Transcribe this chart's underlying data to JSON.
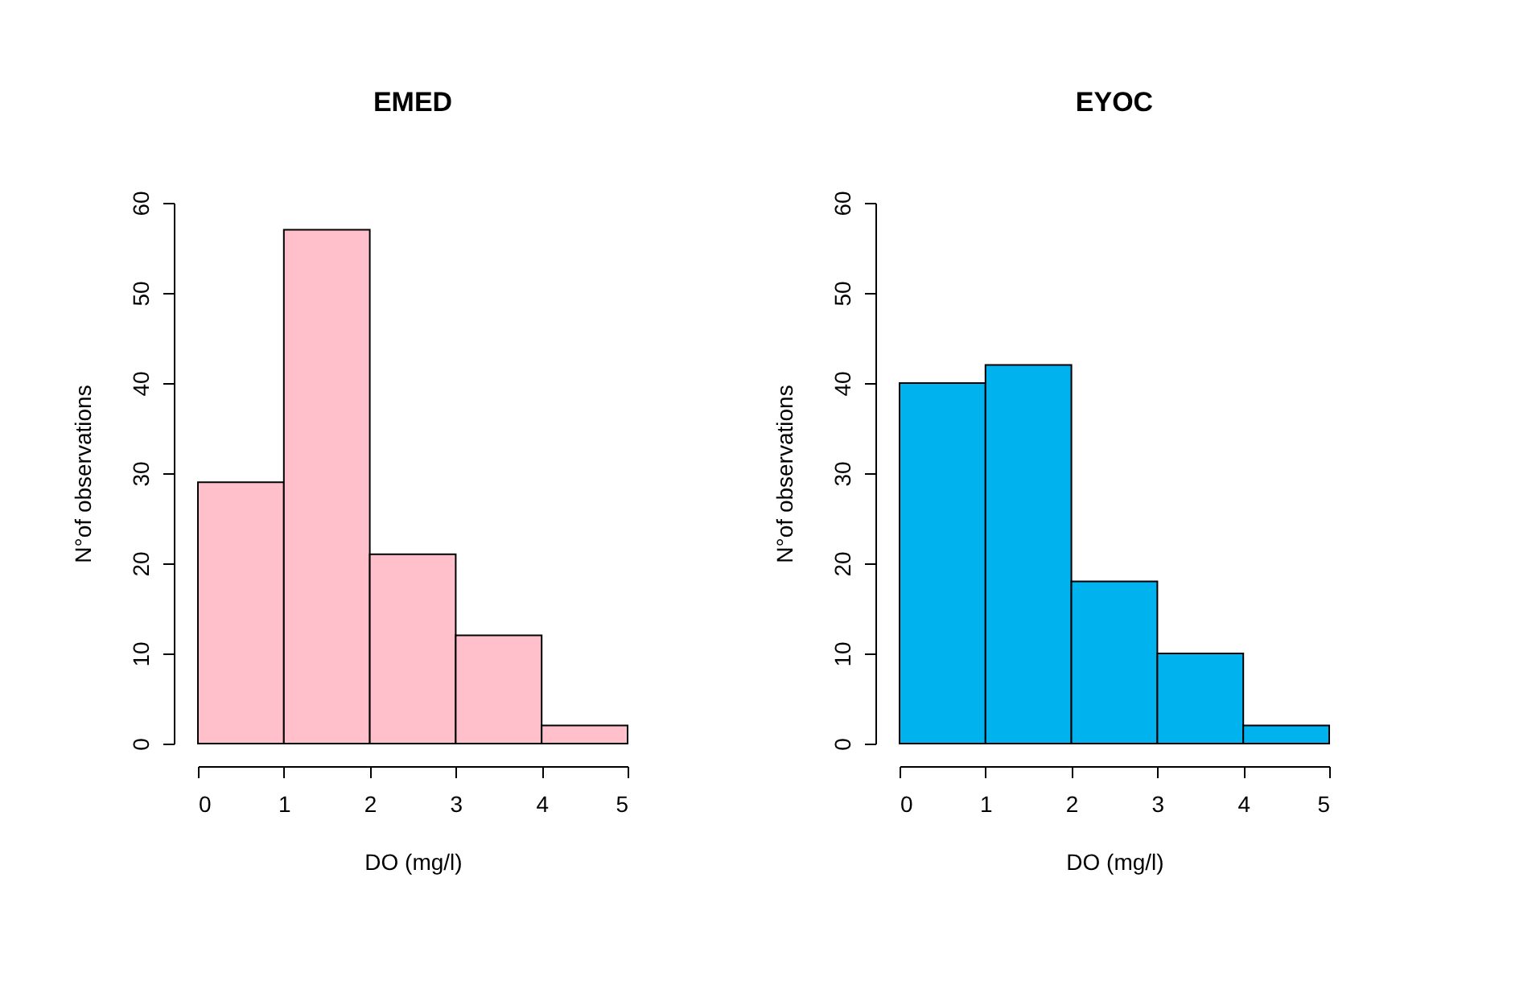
{
  "chart_data": [
    {
      "type": "histogram",
      "title": "EMED",
      "xlabel": "DO (mg/l)",
      "ylabel": "N°of observations",
      "bins": [
        0,
        1,
        2,
        3,
        4,
        5
      ],
      "values": [
        29,
        57,
        21,
        12,
        2
      ],
      "color": "#ffc0cb",
      "xlim": [
        0,
        5
      ],
      "xticks": [
        0,
        1,
        2,
        3,
        4,
        5
      ],
      "ylim": [
        0,
        60
      ],
      "yticks": [
        0,
        10,
        20,
        30,
        40,
        50,
        60
      ]
    },
    {
      "type": "histogram",
      "title": "EYOC",
      "xlabel": "DO (mg/l)",
      "ylabel": "N°of observations",
      "bins": [
        0,
        1,
        2,
        3,
        4,
        5
      ],
      "values": [
        40,
        42,
        18,
        10,
        2
      ],
      "color": "#00b2ee",
      "xlim": [
        0,
        5
      ],
      "xticks": [
        0,
        1,
        2,
        3,
        4,
        5
      ],
      "ylim": [
        0,
        60
      ],
      "yticks": [
        0,
        10,
        20,
        30,
        40,
        50,
        60
      ]
    }
  ]
}
